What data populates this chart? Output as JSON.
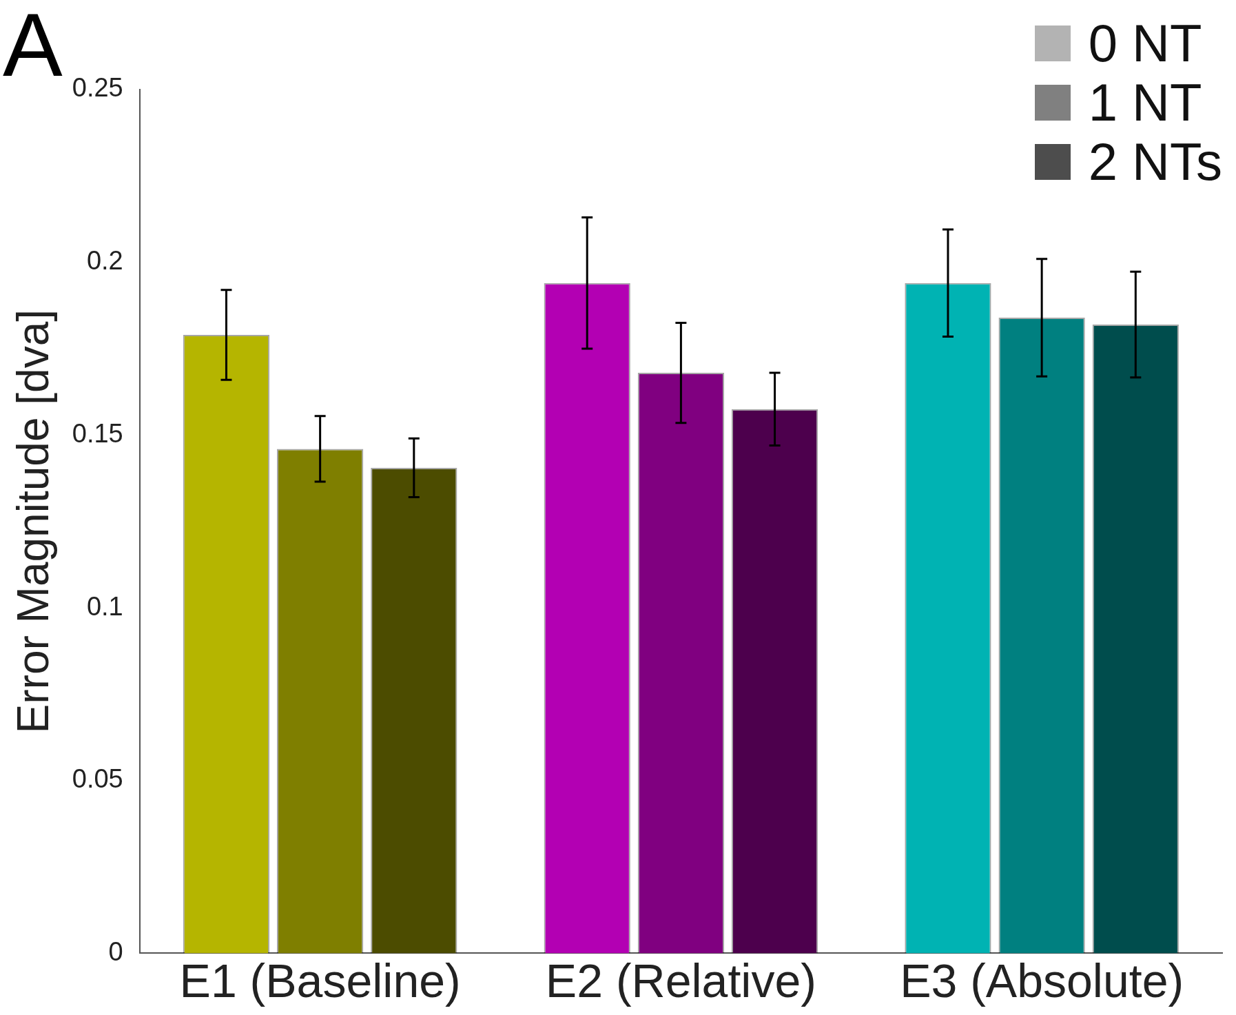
{
  "chart_data": {
    "type": "bar",
    "annotations": [
      "A"
    ],
    "ylabel": "Error Magnitude [dva]",
    "categories": [
      "E1 (Baseline)",
      "E2 (Relative)",
      "E3 (Absolute)"
    ],
    "series": [
      {
        "name": "0 NT",
        "color": "#b3b3b3",
        "colors": [
          "#b5b500",
          "#b300b3",
          "#00b3b3"
        ],
        "values": [
          0.179,
          0.194,
          0.194
        ],
        "errors": [
          0.013,
          0.019,
          0.0155
        ]
      },
      {
        "name": "1 NT",
        "color": "#808080",
        "colors": [
          "#7f7f00",
          "#800080",
          "#008080"
        ],
        "values": [
          0.146,
          0.168,
          0.184
        ],
        "errors": [
          0.0095,
          0.0145,
          0.017
        ]
      },
      {
        "name": "2 NTs",
        "color": "#4d4d4d",
        "colors": [
          "#4c4c00",
          "#4d004d",
          "#004d4d"
        ],
        "values": [
          0.1405,
          0.1575,
          0.182
        ],
        "errors": [
          0.0085,
          0.0105,
          0.0153
        ]
      }
    ],
    "ylim": [
      0,
      0.25
    ],
    "yticks": [
      0,
      0.05,
      0.1,
      0.15,
      0.2,
      0.25
    ],
    "grid": false,
    "legend": "top right"
  }
}
